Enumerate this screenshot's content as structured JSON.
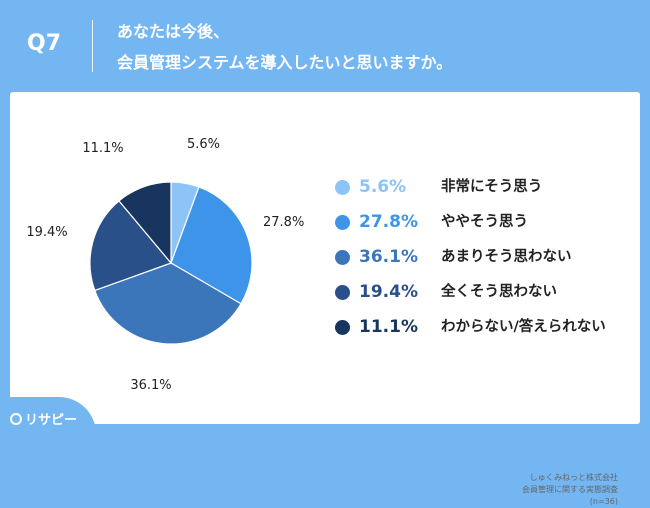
{
  "header": {
    "question_number": "Q7",
    "title_line1": "あなたは今後、",
    "title_line2": "会員管理システムを導入したいと思いますか。"
  },
  "chart_data": {
    "type": "pie",
    "title": "",
    "slices": [
      {
        "label": "非常にそう思う",
        "value": 5.6,
        "display": "5.6%",
        "color": "#8cc4f7"
      },
      {
        "label": "ややそう思う",
        "value": 27.8,
        "display": "27.8%",
        "color": "#3d94e8"
      },
      {
        "label": "あまりそう思わない",
        "value": 36.1,
        "display": "36.1%",
        "color": "#3b76bb"
      },
      {
        "label": "全くそう思わない",
        "value": 19.4,
        "display": "19.4%",
        "color": "#2a5089"
      },
      {
        "label": "わからない/答えられない",
        "value": 11.1,
        "display": "11.1%",
        "color": "#183560"
      }
    ],
    "start": "12 o'clock",
    "direction": "clockwise",
    "legend_position": "right"
  },
  "source": {
    "line1": "しゅくみねっと株式会社",
    "line2": "会員管理に関する実態調査",
    "line3": "(n=36)"
  },
  "logo": {
    "text": "リサピー"
  }
}
